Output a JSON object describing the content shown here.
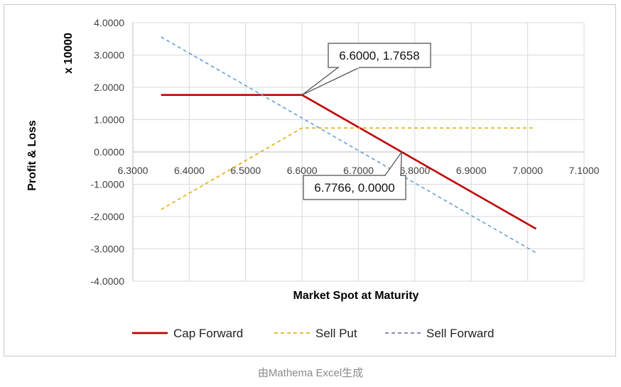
{
  "caption": "由Mathema Excel生成",
  "chart_data": {
    "type": "line",
    "title": "",
    "xlabel": "Market Spot at Maturity",
    "ylabel": "Profit & Loss",
    "yunit": "x 10000",
    "xlim": [
      6.3,
      7.1
    ],
    "ylim": [
      -4.0,
      4.0
    ],
    "x_ticks": [
      "6.3000",
      "6.4000",
      "6.5000",
      "6.6000",
      "6.7000",
      "6.8000",
      "6.9000",
      "7.0000",
      "7.1000"
    ],
    "y_ticks": [
      "4.0000",
      "3.0000",
      "2.0000",
      "1.0000",
      "0.0000",
      "-1.0000",
      "-2.0000",
      "-3.0000",
      "-4.0000"
    ],
    "grid": true,
    "legend_position": "bottom",
    "series": [
      {
        "name": "Cap Forward",
        "color": "#c00000",
        "style": "solid",
        "x": [
          6.35,
          6.6,
          6.7766,
          7.015
        ],
        "y": [
          1.7658,
          1.7658,
          0.0,
          -2.38
        ]
      },
      {
        "name": "Sell Put",
        "color": "#e0a800",
        "style": "dashed",
        "x": [
          6.35,
          6.6,
          7.015
        ],
        "y": [
          -1.78,
          0.74,
          0.74
        ]
      },
      {
        "name": "Sell Forward",
        "color": "#7a5aa8",
        "style": "dashed",
        "x": [],
        "y": []
      },
      {
        "name": "",
        "color": "#5b9bd5",
        "style": "dashed",
        "x": [
          6.35,
          7.015
        ],
        "y": [
          3.56,
          -3.12
        ]
      }
    ],
    "annotations": [
      {
        "text": "6.6000, 1.7658",
        "x": 6.6,
        "y": 1.7658
      },
      {
        "text": "6.7766, 0.0000",
        "x": 6.7766,
        "y": 0.0
      }
    ]
  }
}
